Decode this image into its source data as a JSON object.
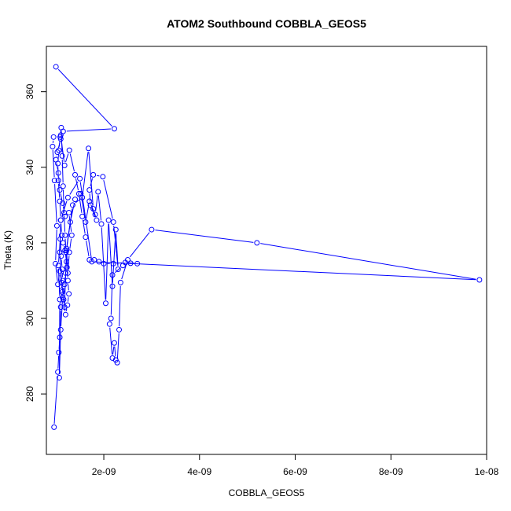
{
  "chart_data": {
    "type": "line",
    "title": "ATOM2 Southbound COBBLA_GEOS5",
    "xlabel": "COBBLA_GEOS5",
    "ylabel": "Theta (K)",
    "xlim": [
      8e-10,
      1e-08
    ],
    "ylim": [
      264,
      372
    ],
    "x_ticks": [
      {
        "value": 2e-09,
        "label": "2e-09"
      },
      {
        "value": 4e-09,
        "label": "4e-09"
      },
      {
        "value": 6e-09,
        "label": "6e-09"
      },
      {
        "value": 8e-09,
        "label": "8e-09"
      },
      {
        "value": 1e-08,
        "label": "1e-08"
      }
    ],
    "y_ticks": [
      {
        "value": 280,
        "label": "280"
      },
      {
        "value": 300,
        "label": "300"
      },
      {
        "value": 320,
        "label": "320"
      },
      {
        "value": 340,
        "label": "340"
      },
      {
        "value": 360,
        "label": "360"
      }
    ],
    "grid": false,
    "legend": "none",
    "series_color": "#0000ff",
    "points": [
      [
        9.6e-10,
        271.2
      ],
      [
        1.04e-09,
        285.8
      ],
      [
        1.06e-09,
        291.0
      ],
      [
        1.08e-09,
        295.0
      ],
      [
        1.1e-09,
        303.0
      ],
      [
        1.12e-09,
        307.5
      ],
      [
        1.14e-09,
        310.0
      ],
      [
        1.13e-09,
        313.0
      ],
      [
        1.11e-09,
        316.5
      ],
      [
        1.09e-09,
        321.0
      ],
      [
        1.05e-09,
        314.0
      ],
      [
        1.08e-09,
        305.0
      ],
      [
        1.07e-09,
        284.3
      ],
      [
        1.1e-09,
        297.0
      ],
      [
        1.14e-09,
        305.5
      ],
      [
        1.18e-09,
        309.0
      ],
      [
        1.2e-09,
        312.0
      ],
      [
        1.22e-09,
        315.0
      ],
      [
        1.19e-09,
        318.0
      ],
      [
        1.15e-09,
        320.0
      ],
      [
        1.12e-09,
        322.0
      ],
      [
        1.1e-09,
        326.0
      ],
      [
        1.08e-09,
        331.0
      ],
      [
        1.05e-09,
        336.5
      ],
      [
        1.04e-09,
        341.0
      ],
      [
        1.06e-09,
        344.5
      ],
      [
        1.09e-09,
        348.0
      ],
      [
        1.11e-09,
        350.5
      ],
      [
        1.13e-09,
        343.0
      ],
      [
        1.15e-09,
        335.0
      ],
      [
        1.17e-09,
        328.0
      ],
      [
        1.19e-09,
        322.0
      ],
      [
        1.21e-09,
        317.5
      ],
      [
        1.23e-09,
        313.5
      ],
      [
        1.25e-09,
        310.0
      ],
      [
        1.27e-09,
        306.5
      ],
      [
        1.24e-09,
        303.5
      ],
      [
        1.2e-09,
        301.0
      ],
      [
        1.16e-09,
        305.0
      ],
      [
        1.12e-09,
        309.5
      ],
      [
        1.08e-09,
        312.5
      ],
      [
        1.04e-09,
        309.0
      ],
      [
        9.9e-10,
        314.5
      ],
      [
        1.02e-09,
        324.5
      ],
      [
        9.7e-10,
        336.5
      ],
      [
        9.3e-10,
        345.5
      ],
      [
        9.5e-10,
        348.0
      ],
      [
        1.1e-09,
        348.5
      ],
      [
        1.18e-09,
        340.5
      ],
      [
        1.28e-09,
        344.5
      ],
      [
        1.4e-09,
        338.0
      ],
      [
        1.48e-09,
        333.0
      ],
      [
        1.55e-09,
        327.0
      ],
      [
        1.62e-09,
        321.5
      ],
      [
        1.7e-09,
        315.5
      ],
      [
        1.8e-09,
        315.5
      ],
      [
        1.9e-09,
        315.0
      ],
      [
        2e-09,
        314.5
      ],
      [
        2.2e-09,
        314.5
      ],
      [
        2.45e-09,
        314.8
      ],
      [
        2.7e-09,
        314.5
      ],
      [
        2.56e-09,
        314.6
      ],
      [
        2.4e-09,
        314.0
      ],
      [
        2.18e-09,
        311.5
      ],
      [
        2.15e-09,
        300.0
      ],
      [
        2.12e-09,
        298.5
      ],
      [
        2.18e-09,
        289.5
      ],
      [
        2.22e-09,
        293.5
      ],
      [
        2.25e-09,
        289.0
      ],
      [
        2.28e-09,
        288.3
      ],
      [
        2.32e-09,
        297.0
      ],
      [
        2.35e-09,
        309.5
      ],
      [
        2.5e-09,
        315.5
      ],
      [
        3e-09,
        323.5
      ],
      [
        5.2e-09,
        320.0
      ],
      [
        9.85e-09,
        310.2
      ],
      [
        1.75e-09,
        315.0
      ],
      [
        1.5e-09,
        337.0
      ],
      [
        1.25e-09,
        332.0
      ],
      [
        1.1e-09,
        326.0
      ],
      [
        1.08e-09,
        317.5
      ],
      [
        1.13e-09,
        307.0
      ],
      [
        1.18e-09,
        303.0
      ],
      [
        1.22e-09,
        318.0
      ],
      [
        1.3e-09,
        325.5
      ],
      [
        1.4e-09,
        331.5
      ],
      [
        1.52e-09,
        333.0
      ],
      [
        1.62e-09,
        325.5
      ],
      [
        1.7e-09,
        331.0
      ],
      [
        1.82e-09,
        327.5
      ],
      [
        1.88e-09,
        333.5
      ],
      [
        1.95e-09,
        325.0
      ],
      [
        2.04e-09,
        304.0
      ],
      [
        2.1e-09,
        326.0
      ],
      [
        2.18e-09,
        308.5
      ],
      [
        2.25e-09,
        323.5
      ],
      [
        2.3e-09,
        313.0
      ],
      [
        2.2e-09,
        325.5
      ],
      [
        1.98e-09,
        337.5
      ],
      [
        1.78e-09,
        338.0
      ],
      [
        1.7e-09,
        334.0
      ],
      [
        1.72e-09,
        330.0
      ],
      [
        1.85e-09,
        326.0
      ],
      [
        1.78e-09,
        329.0
      ],
      [
        1.68e-09,
        345.0
      ],
      [
        1.55e-09,
        332.0
      ],
      [
        1.35e-09,
        330.0
      ],
      [
        1.22e-09,
        318.5
      ],
      [
        1.25e-09,
        312.0
      ],
      [
        1.28e-09,
        317.5
      ],
      [
        1.33e-09,
        322.0
      ],
      [
        1.27e-09,
        328.0
      ],
      [
        1.19e-09,
        327.0
      ],
      [
        1.14e-09,
        330.5
      ],
      [
        1.08e-09,
        334.0
      ],
      [
        1.05e-09,
        338.5
      ],
      [
        1e-09,
        342.0
      ],
      [
        1.03e-09,
        344.0
      ],
      [
        1.1e-09,
        347.5
      ],
      [
        1.15e-09,
        349.5
      ],
      [
        2.22e-09,
        350.2
      ],
      [
        1e-09,
        366.6
      ]
    ]
  }
}
